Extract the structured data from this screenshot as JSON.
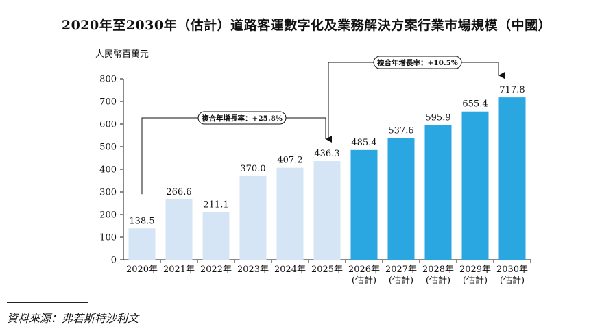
{
  "chart_data": {
    "type": "bar",
    "title": "2020年至2030年（估計）道路客運數字化及業務解決方案行業市場規模（中國）",
    "ylabel": "人民幣百萬元",
    "ylim": [
      0,
      800
    ],
    "yticks": [
      "0",
      "100",
      "200",
      "300",
      "400",
      "500",
      "600",
      "700",
      "800"
    ],
    "categories": [
      [
        "2020年"
      ],
      [
        "2021年"
      ],
      [
        "2022年"
      ],
      [
        "2023年"
      ],
      [
        "2024年"
      ],
      [
        "2025年"
      ],
      [
        "2026年",
        "(估計)"
      ],
      [
        "2027年",
        "(估計)"
      ],
      [
        "2028年",
        "(估計)"
      ],
      [
        "2029年",
        "(估計)"
      ],
      [
        "2030年",
        "(估計)"
      ]
    ],
    "values": [
      138.5,
      266.6,
      211.1,
      370.0,
      407.2,
      436.3,
      485.4,
      537.6,
      595.9,
      655.4,
      717.8
    ],
    "value_labels": [
      "138.5",
      "266.6",
      "211.1",
      "370.0",
      "407.2",
      "436.3",
      "485.4",
      "537.6",
      "595.9",
      "655.4",
      "717.8"
    ],
    "estimated": [
      false,
      false,
      false,
      false,
      false,
      false,
      true,
      true,
      true,
      true,
      true
    ],
    "colors": {
      "actual": "#d5e5f5",
      "estimated": "#2aa7e1"
    },
    "grid": false,
    "annotations": [
      {
        "text": "複合年增長率：+25.8%",
        "from": 0,
        "to": 5
      },
      {
        "text": "複合年增長率：+10.5%",
        "from": 5,
        "to": 10
      }
    ]
  },
  "source": "資料來源：弗若斯特沙利文"
}
